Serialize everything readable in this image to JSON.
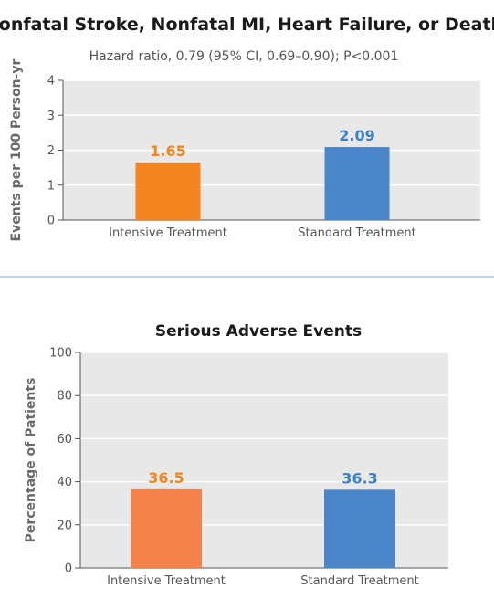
{
  "colors": {
    "intensive_bar_top": "#F4851F",
    "intensive_bar_bottom": "#F4824A",
    "standard_bar": "#4A86C8",
    "intensive_label": "#F0861E",
    "standard_label": "#3E7FC3",
    "plot_bg": "#E8E8E8",
    "gridline": "#FFFFFF",
    "divider": "#A9C3DA",
    "axis_text": "#555555",
    "title_text": "#1A1A1A"
  },
  "chart_data": [
    {
      "type": "bar",
      "title": "Nonfatal Stroke, Nonfatal MI, Heart Failure, or Death",
      "subtitle": "Hazard ratio, 0.79 (95% CI, 0.69–0.90); P<0.001",
      "xlabel": "",
      "ylabel": "Events per 100 Person-yr",
      "categories": [
        "Intensive Treatment",
        "Standard Treatment"
      ],
      "values": [
        1.65,
        2.09
      ],
      "value_labels": [
        "1.65",
        "2.09"
      ],
      "ylim": [
        0,
        4
      ],
      "yticks": [
        0,
        1,
        2,
        3,
        4
      ],
      "ytick_labels": [
        "0",
        "1",
        "2",
        "3",
        "4"
      ],
      "grid": "horizontal"
    },
    {
      "type": "bar",
      "title": "Serious Adverse Events",
      "xlabel": "",
      "ylabel": "Percentage of Patients",
      "categories": [
        "Intensive Treatment",
        "Standard Treatment"
      ],
      "values": [
        36.5,
        36.3
      ],
      "value_labels": [
        "36.5",
        "36.3"
      ],
      "ylim": [
        0,
        100
      ],
      "yticks": [
        0,
        20,
        40,
        60,
        80,
        100
      ],
      "ytick_labels": [
        "0",
        "20",
        "40",
        "60",
        "80",
        "100"
      ],
      "grid": "horizontal"
    }
  ]
}
